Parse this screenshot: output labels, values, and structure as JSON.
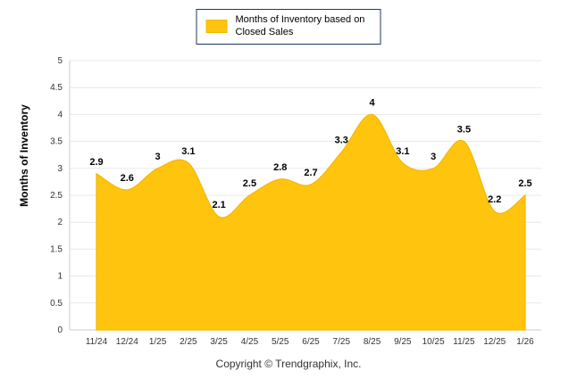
{
  "legend": {
    "label": "Months of Inventory based on Closed Sales"
  },
  "y_axis_title": "Months of Inventory",
  "footer": "Copyright © Trendgraphix, Inc.",
  "chart_data": {
    "type": "area",
    "title": "Months of Inventory based on Closed Sales",
    "categories": [
      "11/24",
      "12/24",
      "1/25",
      "2/25",
      "3/25",
      "4/25",
      "5/25",
      "6/25",
      "7/25",
      "8/25",
      "9/25",
      "10/25",
      "11/25",
      "12/25",
      "1/26"
    ],
    "values": [
      2.9,
      2.6,
      3,
      3.1,
      2.1,
      2.5,
      2.8,
      2.7,
      3.3,
      4,
      3.1,
      3,
      3.5,
      2.2,
      2.5
    ],
    "xlabel": "",
    "ylabel": "Months of Inventory",
    "ylim": [
      0,
      5
    ],
    "ytick_step": 0.5,
    "grid": true,
    "legend_position": "top",
    "smooth": true,
    "colors": {
      "area_fill": "#FFC40D",
      "area_stroke": "#F3B800",
      "label_text": "#000000",
      "axis_text": "#333333",
      "gridline": "#E8E8E8",
      "zero_line": "#CCCCCC",
      "legend_border": "#1F3864"
    }
  }
}
